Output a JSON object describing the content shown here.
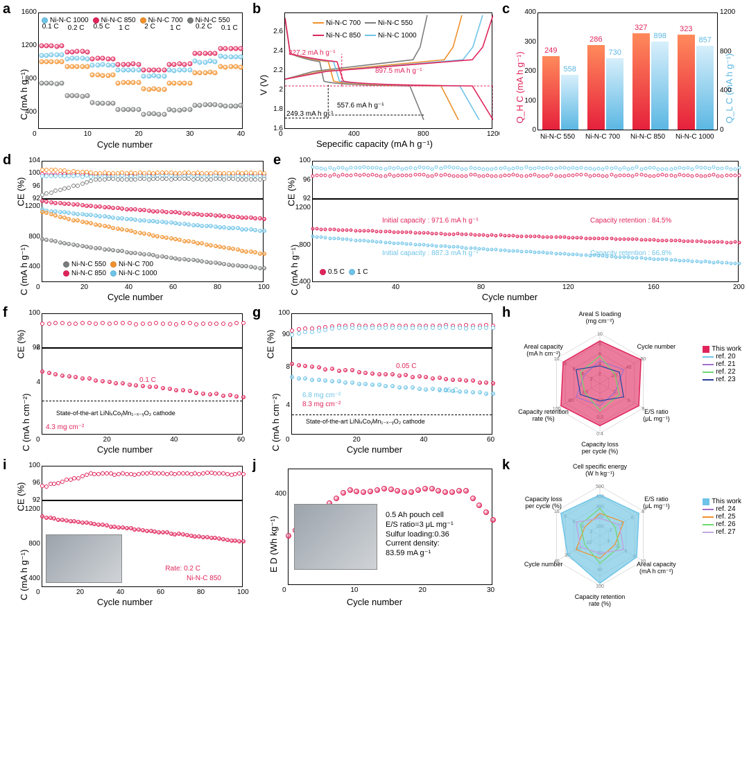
{
  "colors": {
    "ni550": "#7b7d7d",
    "ni700": "#f1902a",
    "ni850": "#e0245b",
    "ni1000": "#6ec4e8",
    "bar_qh_top": "#ff8a5b",
    "bar_qh_bot": "#e6213c",
    "bar_ql_top": "#d7effb",
    "bar_ql_bot": "#5bb7e3",
    "radar_h_fill": "rgba(224,36,91,0.6)",
    "radar_k_fill": "rgba(121,200,226,0.7)",
    "ref20": "#6ec4e8",
    "ref21": "#a070c8",
    "ref22": "#6ed86e",
    "ref23": "#2b3c9b",
    "ref24": "#a070c8",
    "ref25": "#f1902a",
    "ref26": "#6ed86e",
    "ref27": "#c0a8e0"
  },
  "panels": {
    "a": {
      "label": "a",
      "xlabel": "Cycle number",
      "ylabel": "C (mA h g⁻¹)",
      "xlim": [
        0,
        40
      ],
      "ylim": [
        200,
        1600
      ],
      "xticks": [
        0,
        10,
        20,
        30,
        40
      ],
      "yticks": [
        400,
        800,
        1200,
        1600
      ],
      "legend": [
        {
          "label": "Ni-N-C 1000",
          "color": "#6ec4e8"
        },
        {
          "label": "Ni-N-C 850",
          "color": "#e0245b"
        },
        {
          "label": "Ni-N-C 700",
          "color": "#f1902a"
        },
        {
          "label": "Ni-N-C 550",
          "color": "#7b7d7d"
        }
      ],
      "rate_labels": [
        "0.1 C",
        "0.2 C",
        "0.5 C",
        "1 C",
        "2 C",
        "1 C",
        "0.2 C",
        "0.1 C"
      ],
      "series_baselines": {
        "ni850": [
          1190,
          1120,
          1040,
          970,
          900,
          970,
          1100,
          1160
        ],
        "ni1000": [
          1080,
          1040,
          960,
          900,
          830,
          900,
          1000,
          1060
        ],
        "ni700": [
          1000,
          940,
          840,
          750,
          670,
          740,
          870,
          940
        ],
        "ni550": [
          740,
          590,
          500,
          430,
          370,
          420,
          480,
          470
        ]
      }
    },
    "b": {
      "label": "b",
      "xlabel": "Sepecific capacity (mA h g⁻¹)",
      "ylabel": "V (V)",
      "xlim": [
        0,
        1200
      ],
      "ylim": [
        1.6,
        2.8
      ],
      "xticks": [
        0,
        400,
        800,
        1200
      ],
      "yticks": [
        1.6,
        1.8,
        2.0,
        2.2,
        2.4,
        2.6
      ],
      "legend": [
        {
          "label": "Ni-N-C 700",
          "color": "#f1902a"
        },
        {
          "label": "Ni-N-C 550",
          "color": "#7b7d7d"
        },
        {
          "label": "Ni-N-C 850",
          "color": "#e0245b"
        },
        {
          "label": "Ni-N-C 1000",
          "color": "#6ec4e8"
        }
      ],
      "ann": {
        "a1": "327.2 mA h g⁻¹",
        "a2": "897.5 mA h g⁻¹",
        "a3": "557.6 mA h g⁻¹",
        "a4": "249.3 mA h g⁻¹"
      },
      "discharge_end": {
        "ni550": 800,
        "ni700": 1000,
        "ni850": 1200,
        "ni1000": 1120
      },
      "charge_end": {
        "ni550": 820,
        "ni700": 1020,
        "ni850": 1200,
        "ni1000": 1140
      }
    },
    "c": {
      "label": "c",
      "ylabel_left": "Q_H C (mA h g⁻¹)",
      "ylabel_right": "Q_L C (mA h g⁻¹)",
      "left_lim": [
        0,
        400
      ],
      "right_lim": [
        0,
        1200
      ],
      "left_ticks": [
        0,
        100,
        200,
        300,
        400
      ],
      "right_ticks": [
        0,
        400,
        800,
        1200
      ],
      "categories": [
        "Ni-N-C 550",
        "Ni-N-C 700",
        "Ni-N-C 850",
        "Ni-N-C 1000"
      ],
      "qh": [
        249,
        286,
        327,
        323
      ],
      "ql": [
        558,
        730,
        898,
        857
      ]
    },
    "d": {
      "label": "d",
      "xlabel": "Cycle number",
      "ylabel_top": "CE (%)",
      "ylabel_bot": "C (mA h g⁻¹)",
      "xlim": [
        0,
        100
      ],
      "xticks": [
        0,
        20,
        40,
        60,
        80,
        100
      ],
      "ce_lim": [
        92,
        104
      ],
      "ce_ticks": [
        92,
        96,
        100,
        104
      ],
      "c_lim": [
        200,
        1300
      ],
      "c_ticks": [
        400,
        800,
        1200
      ],
      "legend": [
        {
          "label": "Ni-N-C 550",
          "color": "#7b7d7d"
        },
        {
          "label": "Ni-N-C 700",
          "color": "#f1902a"
        },
        {
          "label": "Ni-N-C 850",
          "color": "#e0245b"
        },
        {
          "label": "Ni-N-C 1000",
          "color": "#6ec4e8"
        }
      ],
      "c_start": {
        "ni850": 1260,
        "ni1000": 1150,
        "ni700": 1120,
        "ni550": 760
      },
      "c_end": {
        "ni850": 1030,
        "ni1000": 870,
        "ni700": 560,
        "ni550": 370
      }
    },
    "e": {
      "label": "e",
      "xlabel": "Cycle number",
      "ylabel_top": "CE (%)",
      "ylabel_bot": "C (mA h g⁻¹)",
      "xlim": [
        0,
        200
      ],
      "xticks": [
        0,
        40,
        80,
        120,
        160,
        200
      ],
      "ce_lim": [
        92,
        100
      ],
      "ce_ticks": [
        92,
        96,
        100
      ],
      "c_lim": [
        400,
        1300
      ],
      "c_ticks": [
        400,
        800,
        1200
      ],
      "ann": {
        "a1": "Initial capacity : 971.6 mA h g⁻¹",
        "a2": "Capacity retention : 84.5%",
        "a3": "Initial capacity : 887.3 mA h g⁻¹",
        "a4": "Capacity retention : 66.8%"
      },
      "legend": [
        {
          "label": "0.5 C",
          "color": "#e0245b"
        },
        {
          "label": "1 C",
          "color": "#6ec4e8"
        }
      ],
      "c_start": {
        "c05": 972,
        "c1": 887
      },
      "c_end": {
        "c05": 821,
        "c1": 593
      }
    },
    "f": {
      "label": "f",
      "xlabel": "Cycle number",
      "ylabel_top": "CE (%)",
      "ylabel_bot": "C (mA h cm⁻²)",
      "xlim": [
        0,
        60
      ],
      "xticks": [
        0,
        20,
        40,
        60
      ],
      "ce_lim": [
        92,
        100
      ],
      "ce_ticks": [
        92,
        100
      ],
      "c_lim": [
        1,
        6
      ],
      "c_ticks": [
        4,
        6
      ],
      "ann": {
        "rate": "0.1 C",
        "ref": "State-of-the-art LiNiₓCoᵧMn₁₋ₓ₋ᵧO₂ cathode",
        "loading": "4.3 mg cm⁻²"
      },
      "c_start": 4.6,
      "c_end": 3.1
    },
    "g": {
      "label": "g",
      "xlabel": "Cycle number",
      "ylabel_top": "CE (%)",
      "ylabel_bot": "C (mA h cm⁻²)",
      "xlim": [
        0,
        60
      ],
      "xticks": [
        0,
        20,
        40,
        60
      ],
      "ce_lim": [
        84,
        100
      ],
      "ce_ticks": [
        90,
        100
      ],
      "c_lim": [
        1,
        10
      ],
      "c_ticks": [
        4,
        8
      ],
      "ann": {
        "rate1": "0.05 C",
        "rate2": "0.05 C",
        "l1": "6.8 mg cm⁻²",
        "l2": "8.3 mg cm⁻²",
        "ref": "State-of-the-art LiNiₓCoᵧMn₁₋ₓ₋ᵧO₂ cathode"
      },
      "series": [
        {
          "color": "#e0245b",
          "start": 8.2,
          "end": 6.3
        },
        {
          "color": "#6ec4e8",
          "start": 6.9,
          "end": 5.2
        }
      ]
    },
    "h": {
      "label": "h",
      "axes": [
        "Areal S loading\n(mg cm⁻²)",
        "Cycle number",
        "E/S ratio\n(μL mg⁻¹)",
        "Capacity loss\nper cycle (%)",
        "Capacity retention\nrate (%)",
        "Areal capacity\n(mA h cm⁻²)"
      ],
      "axis_ticks": [
        [
          2,
          4,
          6,
          8,
          10
        ],
        [
          20,
          40,
          60
        ],
        [
          3,
          6,
          9
        ],
        [
          0.2,
          0.3,
          0.4
        ],
        [
          60,
          80,
          100
        ],
        [
          2,
          4,
          6,
          8,
          10
        ]
      ],
      "legend": [
        {
          "label": "This work",
          "color": "#e0245b",
          "fill": true
        },
        {
          "label": "ref. 20",
          "color": "#6ec4e8"
        },
        {
          "label": "ref. 21",
          "color": "#a070c8"
        },
        {
          "label": "ref. 22",
          "color": "#6ed86e"
        },
        {
          "label": "ref. 23",
          "color": "#2b3c9b"
        }
      ],
      "thiswork_r": [
        0.85,
        0.95,
        0.9,
        0.85,
        0.9,
        0.85
      ]
    },
    "i": {
      "label": "i",
      "xlabel": "Cycle number",
      "ylabel_top": "CE (%)",
      "ylabel_bot": "C (mA h g⁻¹)",
      "xlim": [
        0,
        100
      ],
      "xticks": [
        0,
        20,
        40,
        60,
        80,
        100
      ],
      "ce_lim": [
        92,
        100
      ],
      "ce_ticks": [
        92,
        96,
        100
      ],
      "c_lim": [
        300,
        1300
      ],
      "c_ticks": [
        400,
        800,
        1200
      ],
      "ann": {
        "rate": "Rate: 0.2 C",
        "sample": "Ni-N-C 850"
      },
      "c_start": 1110,
      "c_end": 820
    },
    "j": {
      "label": "j",
      "xlabel": "Cycle number",
      "ylabel": "E D (Wh kg⁻¹)",
      "xlim": [
        0,
        30
      ],
      "xticks": [
        0,
        10,
        20,
        30
      ],
      "ylim": [
        260,
        440
      ],
      "yticks": [
        400
      ],
      "ann": {
        "l1": "0.5 Ah pouch cell",
        "l2": "E/S ratio=3 μL mg⁻¹",
        "l3": "Sulfur loading:0.36",
        "l4": "Current density:",
        "l5": "83.59 mA g⁻¹"
      },
      "data_start": 335,
      "data_peak": 410,
      "data_end": 360
    },
    "k": {
      "label": "k",
      "axes": [
        "Cell specific energy\n(W h kg⁻¹)",
        "E/S ratio\n(μL mg⁻¹)",
        "Areal capacity\n(mA h cm⁻²)",
        "Capacity retention\nrate (%)",
        "Cycle number",
        "Capacity loss\nper cycle (%)"
      ],
      "axis_ticks": [
        [
          100,
          200,
          300,
          400,
          500
        ],
        [
          2,
          4,
          6,
          8
        ],
        [
          2,
          4,
          6,
          8,
          10
        ],
        [
          20,
          60,
          100
        ],
        [
          10,
          20,
          30,
          40
        ],
        [
          2,
          4,
          6,
          8,
          10
        ]
      ],
      "legend": [
        {
          "label": "This work",
          "color": "#6ec4e8",
          "fill": true
        },
        {
          "label": "ref. 24",
          "color": "#a070c8"
        },
        {
          "label": "ref. 25",
          "color": "#f1902a"
        },
        {
          "label": "ref. 26",
          "color": "#6ed86e"
        },
        {
          "label": "ref. 27",
          "color": "#c0a8e0"
        }
      ],
      "thiswork_r": [
        0.82,
        0.9,
        0.85,
        0.95,
        0.75,
        0.9
      ]
    }
  }
}
